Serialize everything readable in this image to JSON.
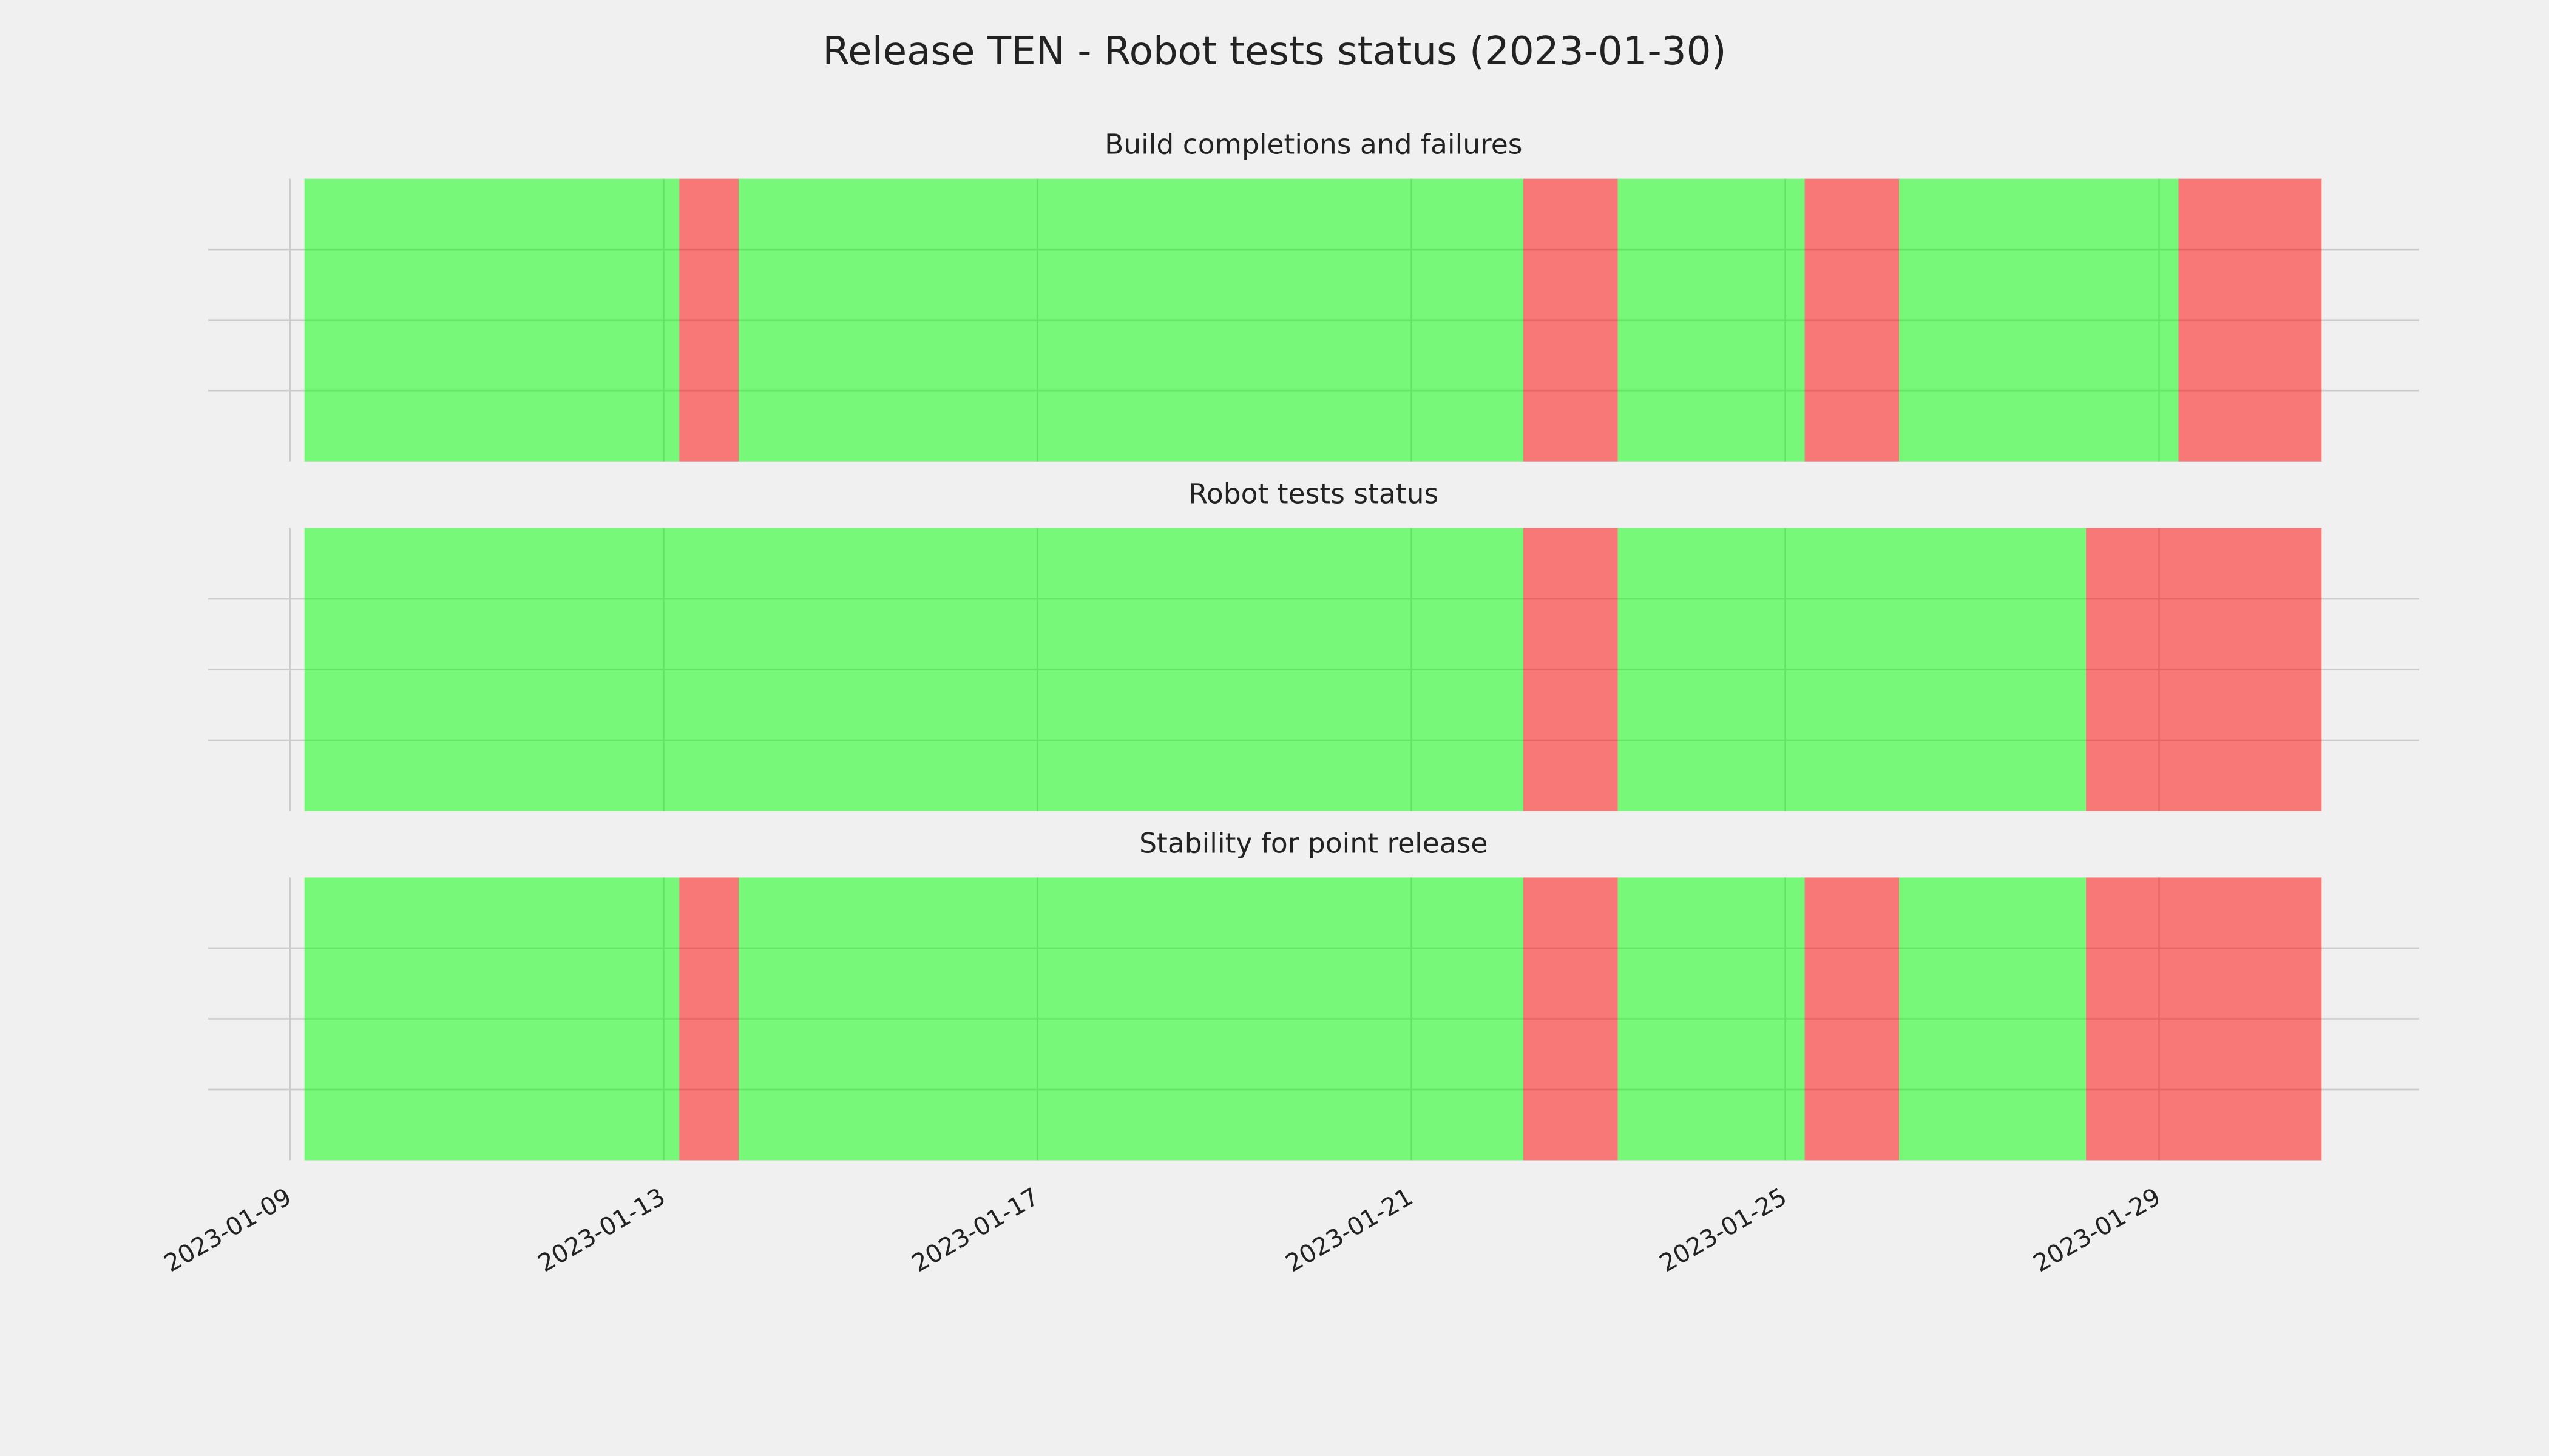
{
  "chart_data": [
    {
      "type": "span",
      "title": "Release TEN - Robot tests status (2023-01-30)",
      "subtitle": "Build completions and failures",
      "starts": [
        "2023-01-09T03:45",
        "2023-01-13T04:00",
        "2023-01-13T19:15",
        "2023-01-22T04:45",
        "2023-01-23T05:00",
        "2023-01-25T05:00",
        "2023-01-26T05:15",
        "2023-01-29T05:00"
      ],
      "ends": [
        "2023-01-13T04:00",
        "2023-01-13T19:15",
        "2023-01-22T04:45",
        "2023-01-23T05:00",
        "2023-01-25T05:00",
        "2023-01-26T05:15",
        "2023-01-29T05:00",
        "2023-01-30T17:45"
      ],
      "colors": [
        "#00ff00",
        "#ff0000",
        "#00ff00",
        "#ff0000",
        "#00ff00",
        "#ff0000",
        "#00ff00",
        "#ff0000"
      ],
      "alpha": 0.5,
      "xlim": [
        "2023-01-08T03:00",
        "2023-01-31T18:45"
      ],
      "xticks": [
        "2023-01-09",
        "2023-01-13",
        "2023-01-17",
        "2023-01-21",
        "2023-01-25",
        "2023-01-29"
      ],
      "ylim": [
        0,
        1
      ],
      "yticks": [
        0.25,
        0.5,
        0.75
      ],
      "grid": true
    },
    {
      "type": "span",
      "subtitle": "Robot tests status",
      "starts": [
        "2023-01-09T03:45",
        "2023-01-22T04:45",
        "2023-01-23T05:00",
        "2023-01-28T05:15"
      ],
      "ends": [
        "2023-01-22T04:45",
        "2023-01-23T05:00",
        "2023-01-28T05:15",
        "2023-01-30T17:45"
      ],
      "colors": [
        "#00ff00",
        "#ff0000",
        "#00ff00",
        "#ff0000"
      ],
      "alpha": 0.5,
      "xlim": [
        "2023-01-08T03:00",
        "2023-01-31T18:45"
      ],
      "xticks": [
        "2023-01-09",
        "2023-01-13",
        "2023-01-17",
        "2023-01-21",
        "2023-01-25",
        "2023-01-29"
      ],
      "ylim": [
        0,
        1
      ],
      "yticks": [
        0.25,
        0.5,
        0.75
      ],
      "grid": true
    },
    {
      "type": "span",
      "subtitle": "Stability for point release",
      "starts": [
        "2023-01-09T03:45",
        "2023-01-13T04:00",
        "2023-01-13T19:15",
        "2023-01-22T04:45",
        "2023-01-23T05:00",
        "2023-01-25T05:00",
        "2023-01-26T05:15",
        "2023-01-28T05:15"
      ],
      "ends": [
        "2023-01-13T04:00",
        "2023-01-13T19:15",
        "2023-01-22T04:45",
        "2023-01-23T05:00",
        "2023-01-25T05:00",
        "2023-01-26T05:15",
        "2023-01-28T05:15",
        "2023-01-30T17:45"
      ],
      "colors": [
        "#00ff00",
        "#ff0000",
        "#00ff00",
        "#ff0000",
        "#00ff00",
        "#ff0000",
        "#00ff00",
        "#ff0000"
      ],
      "alpha": 0.5,
      "xlim": [
        "2023-01-08T03:00",
        "2023-01-31T18:45"
      ],
      "xticks": [
        "2023-01-09",
        "2023-01-13",
        "2023-01-17",
        "2023-01-21",
        "2023-01-25",
        "2023-01-29"
      ],
      "ylim": [
        0,
        1
      ],
      "yticks": [
        0.25,
        0.5,
        0.75
      ],
      "grid": true
    }
  ]
}
